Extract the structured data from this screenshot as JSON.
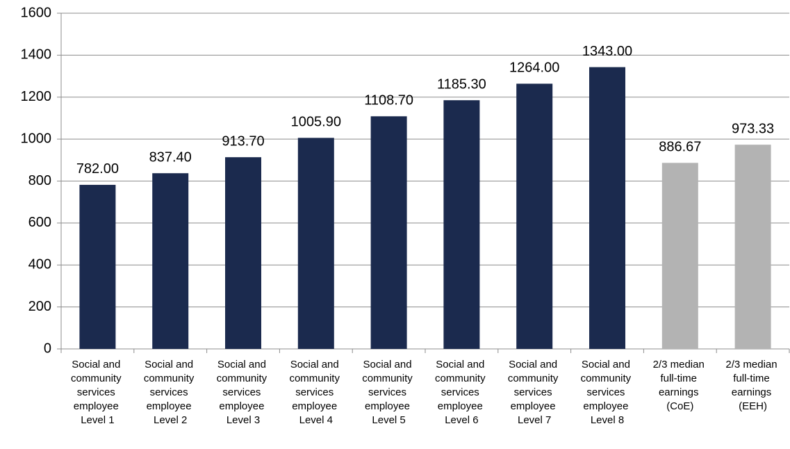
{
  "chart_data": {
    "type": "bar",
    "categories": [
      "Social and community services employee Level 1",
      "Social and community services employee Level 2",
      "Social and community services employee Level 3",
      "Social and community services employee Level 4",
      "Social and community services employee Level 5",
      "Social and community services employee Level 6",
      "Social and community services employee Level 7",
      "Social and community services employee Level 8",
      "2/3 median full-time earnings (CoE)",
      "2/3 median full-time earnings (EEH)"
    ],
    "values": [
      782,
      837.4,
      913.7,
      1005.9,
      1108.7,
      1185.3,
      1264,
      1343,
      886.67,
      973.33
    ],
    "value_labels": [
      "782.00",
      "837.40",
      "913.70",
      "1005.90",
      "1108.70",
      "1185.30",
      "1264.00",
      "1343.00",
      "886.67",
      "973.33"
    ],
    "colors": [
      "#1b2a4e",
      "#1b2a4e",
      "#1b2a4e",
      "#1b2a4e",
      "#1b2a4e",
      "#1b2a4e",
      "#1b2a4e",
      "#1b2a4e",
      "#b3b3b3",
      "#b3b3b3"
    ],
    "ylim": [
      0,
      1600
    ],
    "yticks": [
      0,
      200,
      400,
      600,
      800,
      1000,
      1200,
      1400,
      1600
    ],
    "grid": true
  }
}
